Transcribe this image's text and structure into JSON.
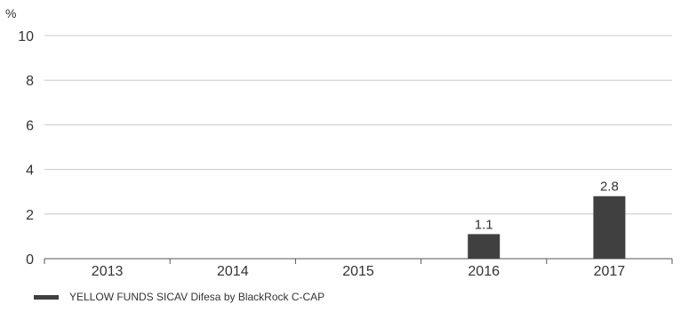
{
  "chart_data": {
    "type": "bar",
    "ylabel": "%",
    "categories": [
      "2013",
      "2014",
      "2015",
      "2016",
      "2017"
    ],
    "series": [
      {
        "name": "YELLOW FUNDS SICAV Difesa by BlackRock C-CAP",
        "values": [
          null,
          null,
          null,
          1.1,
          2.8
        ],
        "data_labels": [
          "",
          "",
          "",
          "1.1",
          "2.8"
        ]
      }
    ],
    "ylim": [
      0,
      10
    ],
    "yticks": [
      "0",
      "2",
      "4",
      "6",
      "8",
      "10"
    ],
    "grid": true,
    "legend_position": "bottom-left",
    "bar_color": "#404040"
  }
}
